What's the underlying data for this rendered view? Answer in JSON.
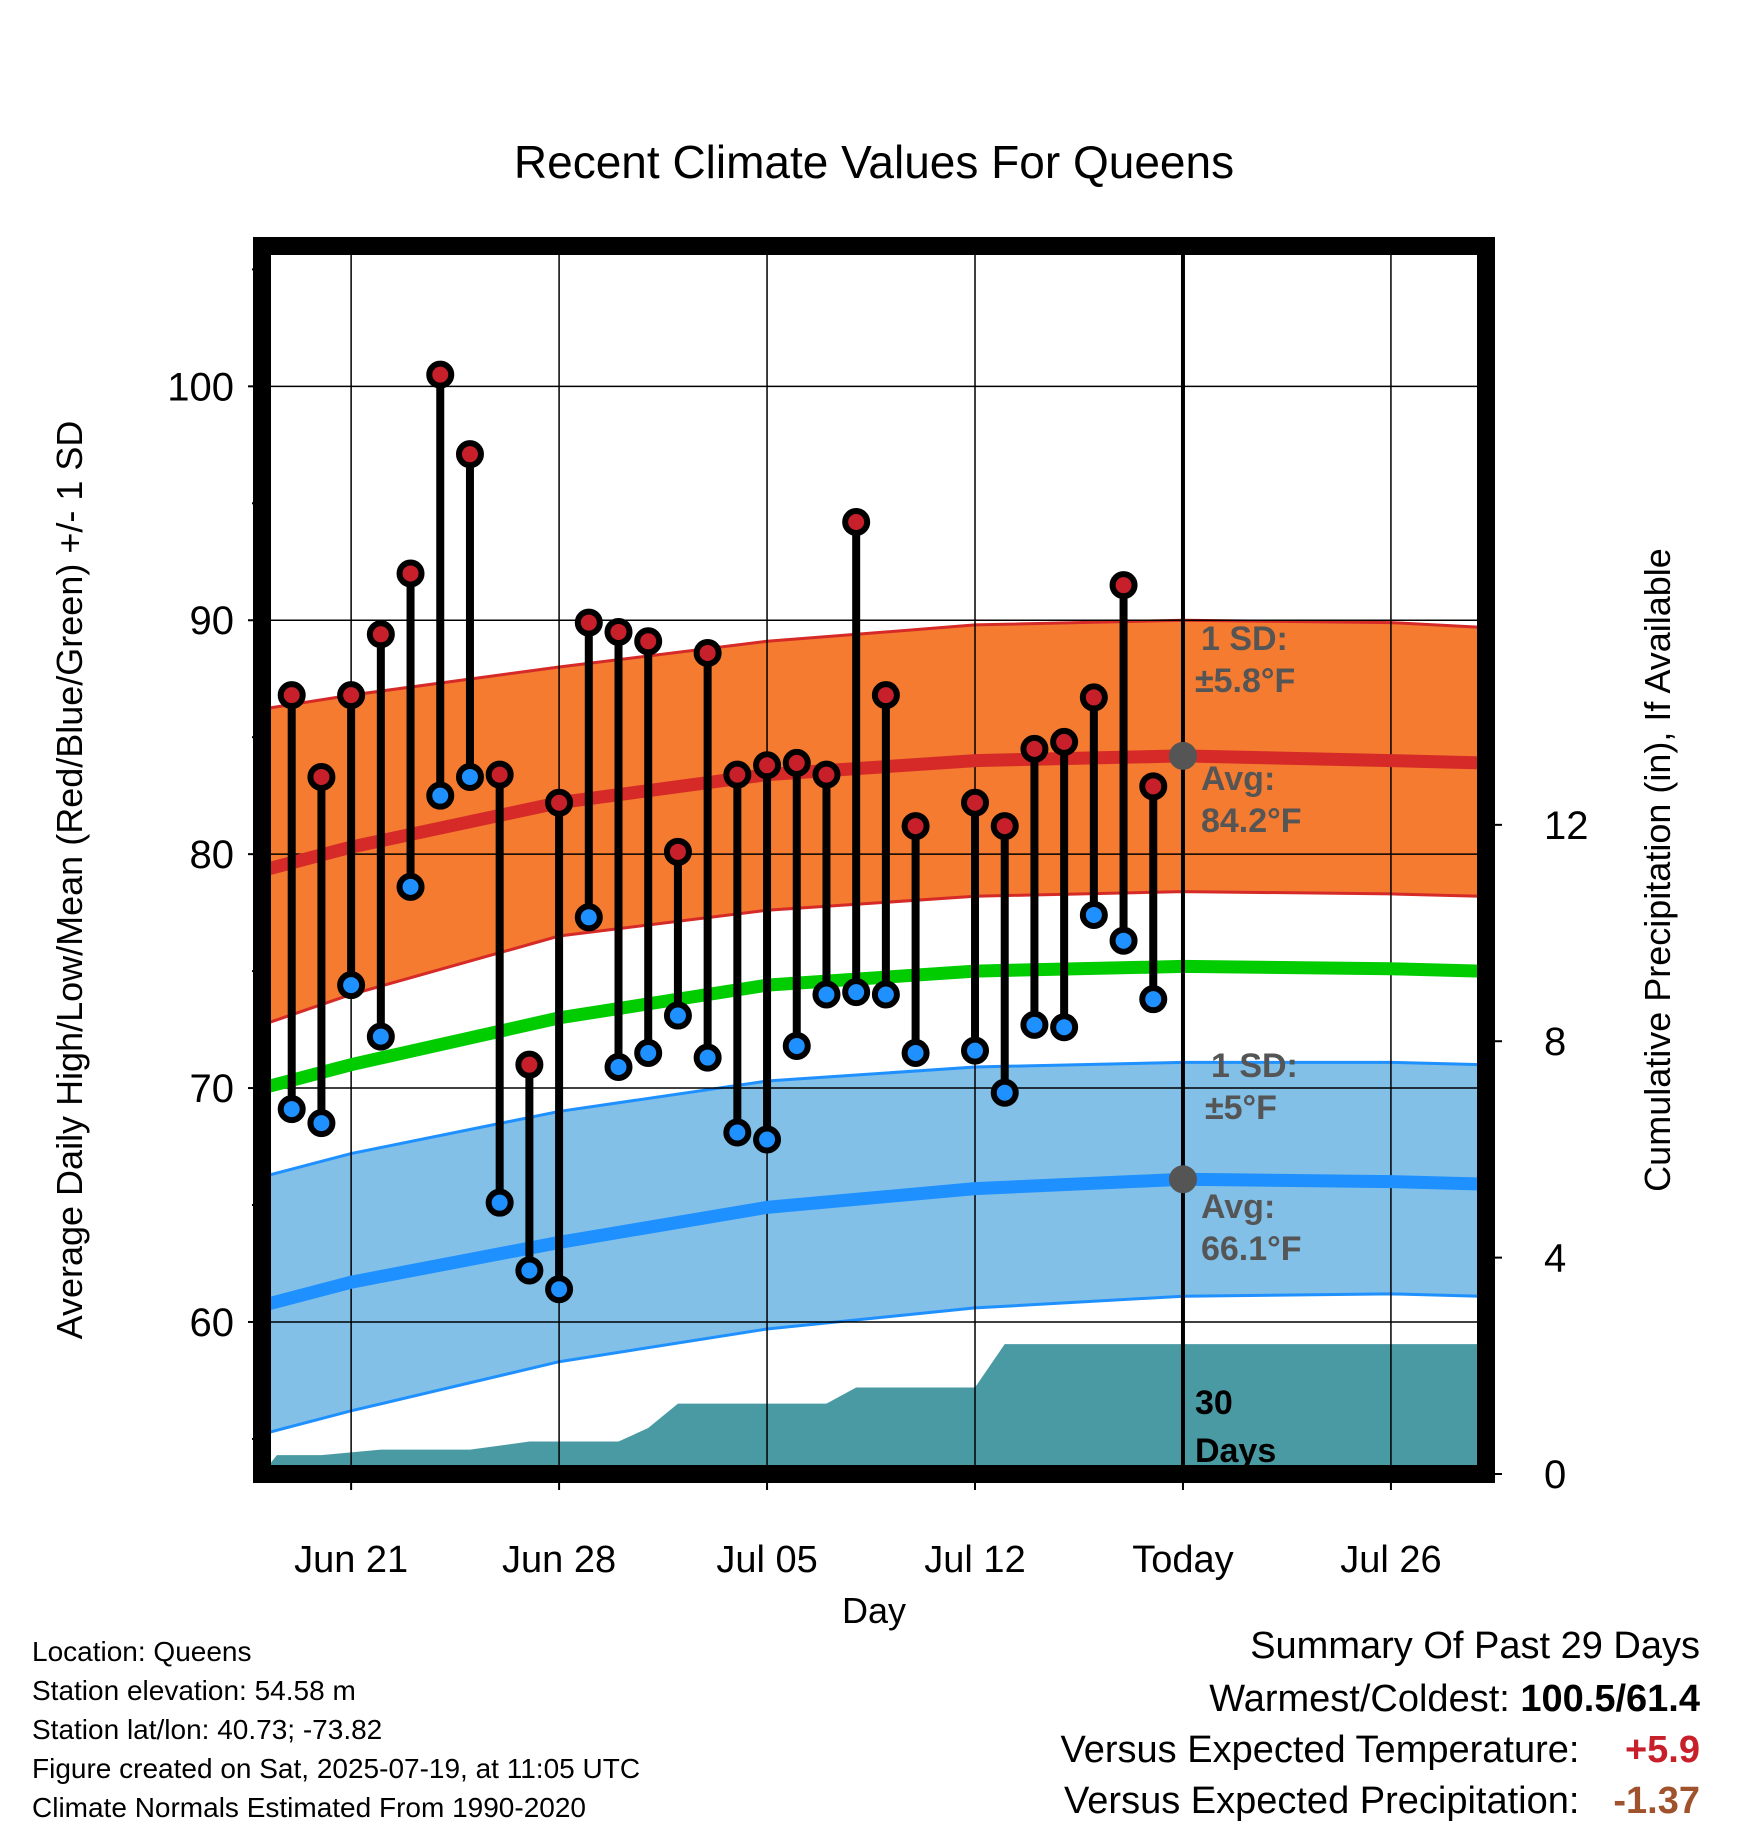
{
  "chart_data": {
    "type": "line",
    "title": "Recent Climate Values For Queens",
    "xlabel": "Day",
    "ylabel": "Average Daily High/Low/Mean (Red/Blue/Green) +/- 1 SD",
    "ylabel_right": "Cumulative Precipitation (in), If Available",
    "ylim": [
      53.5,
      106
    ],
    "yticks": [
      60,
      70,
      80,
      90,
      100
    ],
    "ylim_right": [
      0,
      22.7
    ],
    "yticks_right": [
      0,
      4,
      8,
      12
    ],
    "x_range_days": [
      -31,
      10.2
    ],
    "xticks": [
      {
        "day": -28,
        "label": "Jun 21"
      },
      {
        "day": -21,
        "label": "Jun 28"
      },
      {
        "day": -14,
        "label": "Jul 05"
      },
      {
        "day": -7,
        "label": "Jul 12"
      },
      {
        "day": 0,
        "label": "Today"
      },
      {
        "day": 7,
        "label": "Jul 26"
      }
    ],
    "grid": true,
    "today_day": 0,
    "normals": {
      "day": [
        -31,
        -28,
        -21,
        -14,
        -7,
        0,
        7,
        10
      ],
      "high_mean": [
        79.3,
        80.3,
        82.2,
        83.4,
        84.0,
        84.2,
        84.0,
        83.9
      ],
      "high_sd_upper": [
        86.2,
        86.8,
        88.0,
        89.1,
        89.8,
        90.0,
        89.9,
        89.7
      ],
      "high_sd_lower": [
        72.7,
        74.0,
        76.5,
        77.6,
        78.2,
        78.4,
        78.3,
        78.2
      ],
      "mean_normal": [
        70.0,
        71.0,
        73.0,
        74.4,
        75.0,
        75.2,
        75.1,
        75.0
      ],
      "low_mean": [
        60.7,
        61.7,
        63.4,
        64.9,
        65.7,
        66.1,
        66.0,
        65.9
      ],
      "low_sd_upper": [
        66.2,
        67.2,
        69.0,
        70.3,
        70.9,
        71.1,
        71.1,
        71.0
      ],
      "low_sd_lower": [
        55.2,
        56.2,
        58.3,
        59.7,
        60.6,
        61.1,
        61.2,
        61.1
      ]
    },
    "precip_cumulative": {
      "day": [
        -31,
        -30.5,
        -29,
        -27,
        -24,
        -22,
        -21,
        -19,
        -18,
        -17,
        -13,
        -12,
        -11,
        -7,
        -6,
        -5,
        10.2
      ],
      "inches": [
        0.0,
        0.35,
        0.35,
        0.45,
        0.45,
        0.6,
        0.6,
        0.6,
        0.85,
        1.3,
        1.3,
        1.3,
        1.6,
        1.6,
        2.4,
        2.4,
        2.4
      ]
    },
    "observations": {
      "day": [
        -30,
        -29,
        -28,
        -27,
        -26,
        -25,
        -24,
        -23,
        -22,
        -21,
        -20,
        -19,
        -18,
        -17,
        -16,
        -15,
        -14,
        -13,
        -12,
        -11,
        -10,
        -9,
        -7,
        -6,
        -5,
        -4,
        -3,
        -2,
        -1
      ],
      "high": [
        86.8,
        83.3,
        86.8,
        89.4,
        92.0,
        100.5,
        97.1,
        83.4,
        71.0,
        82.2,
        89.9,
        89.5,
        89.1,
        80.1,
        88.6,
        83.4,
        83.8,
        83.9,
        83.4,
        94.2,
        86.8,
        81.2,
        82.2,
        81.2,
        84.5,
        84.8,
        86.7,
        91.5,
        82.9
      ],
      "low": [
        69.1,
        68.5,
        74.4,
        72.2,
        78.6,
        82.5,
        83.3,
        65.1,
        62.2,
        61.4,
        77.3,
        70.9,
        71.5,
        73.1,
        71.3,
        68.1,
        67.8,
        71.8,
        74.0,
        74.1,
        74.0,
        71.5,
        71.6,
        69.8,
        72.7,
        72.6,
        77.4,
        76.3,
        73.8
      ]
    },
    "annotations": {
      "high_sd": "1 SD:",
      "high_sd_value": "±5.8°F",
      "high_avg": "Avg:",
      "high_avg_value": "84.2°F",
      "low_sd": "1 SD:",
      "low_sd_value": "±5°F",
      "low_avg": "Avg:",
      "low_avg_value": "66.1°F",
      "period_number": "30",
      "period_unit": "Days"
    },
    "colors": {
      "high_band": "#f47b2f",
      "high_line": "#d52a27",
      "mean_line": "#00cc00",
      "low_band": "#82c0e8",
      "low_line": "#1e90ff",
      "precip": "#4a9aa4",
      "high_marker": "#c8202a",
      "low_marker": "#1e90ff",
      "annotation_text": "#555555"
    }
  },
  "info": {
    "location": "Location: Queens",
    "elevation": "Station elevation: 54.58 m",
    "latlon": "Station lat/lon: 40.73; -73.82",
    "created": "Figure created on Sat, 2025-07-19, at 11:05 UTC",
    "normals": "Climate Normals Estimated From 1990-2020"
  },
  "summary": {
    "title": "Summary Of Past 29 Days",
    "warm_cold_label": "Warmest/Coldest:",
    "warm_cold_value": "100.5/61.4",
    "temp_label": "Versus Expected Temperature:",
    "temp_value": "+5.9",
    "temp_color": "#c8202a",
    "precip_label": "Versus Expected Precipitation:",
    "precip_value": "-1.37",
    "precip_color": "#a0522d"
  }
}
